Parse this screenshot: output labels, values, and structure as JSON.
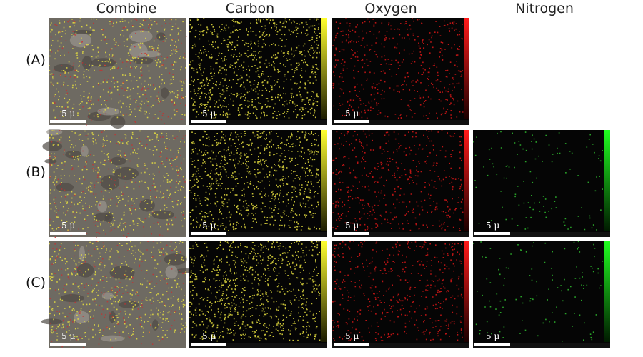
{
  "columns": [
    "Combine",
    "Carbon",
    "Oxygen",
    "Nitrogen"
  ],
  "rows": [
    "(A)",
    "(B)",
    "(C)"
  ],
  "scale_label": "5 μ"
}
